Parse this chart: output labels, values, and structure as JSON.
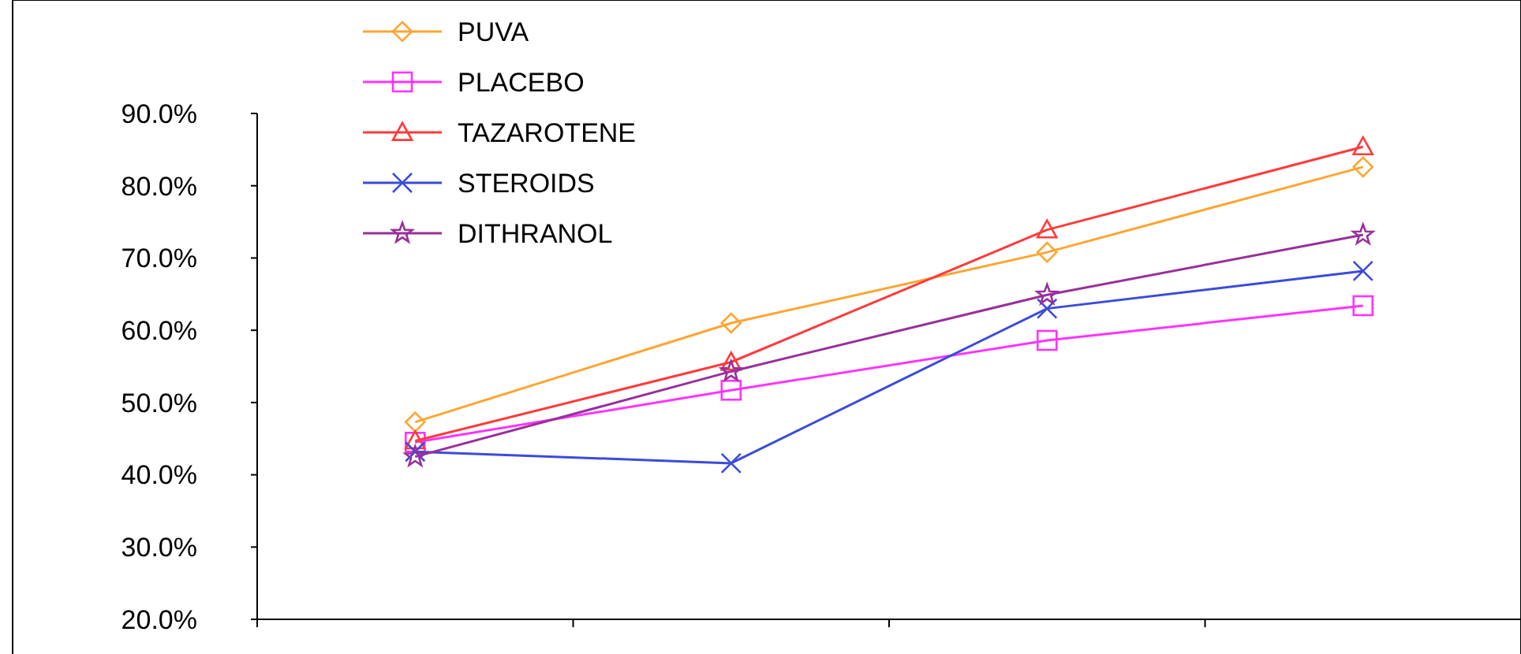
{
  "chart_data": {
    "type": "line",
    "categories": [
      null,
      null,
      null,
      null
    ],
    "series": [
      {
        "name": "PUVA",
        "color": "#ffa531",
        "marker": "diamond",
        "values": [
          47.3,
          61.0,
          70.8,
          82.6
        ]
      },
      {
        "name": "PLACEBO",
        "color": "#ff33ff",
        "marker": "square",
        "values": [
          44.5,
          51.7,
          58.6,
          63.4
        ]
      },
      {
        "name": "TAZAROTENE",
        "color": "#ff3b3b",
        "marker": "triangle",
        "values": [
          44.7,
          55.6,
          73.9,
          85.4
        ]
      },
      {
        "name": "STEROIDS",
        "color": "#3b4bdb",
        "marker": "cross",
        "values": [
          43.2,
          41.6,
          63.0,
          68.2
        ]
      },
      {
        "name": "DITHRANOL",
        "color": "#98309a",
        "marker": "star",
        "values": [
          42.5,
          54.3,
          64.9,
          73.2
        ]
      }
    ],
    "ylim": [
      20,
      90
    ],
    "yticks": [
      {
        "value": 20,
        "label": "20.0%"
      },
      {
        "value": 30,
        "label": "30.0%"
      },
      {
        "value": 40,
        "label": "40.0%"
      },
      {
        "value": 50,
        "label": "50.0%"
      },
      {
        "value": 60,
        "label": "60.0%"
      },
      {
        "value": 70,
        "label": "70.0%"
      },
      {
        "value": 80,
        "label": "80.0%"
      },
      {
        "value": 90,
        "label": "90.0%"
      }
    ],
    "legend": "top left",
    "line_style": "solid"
  }
}
